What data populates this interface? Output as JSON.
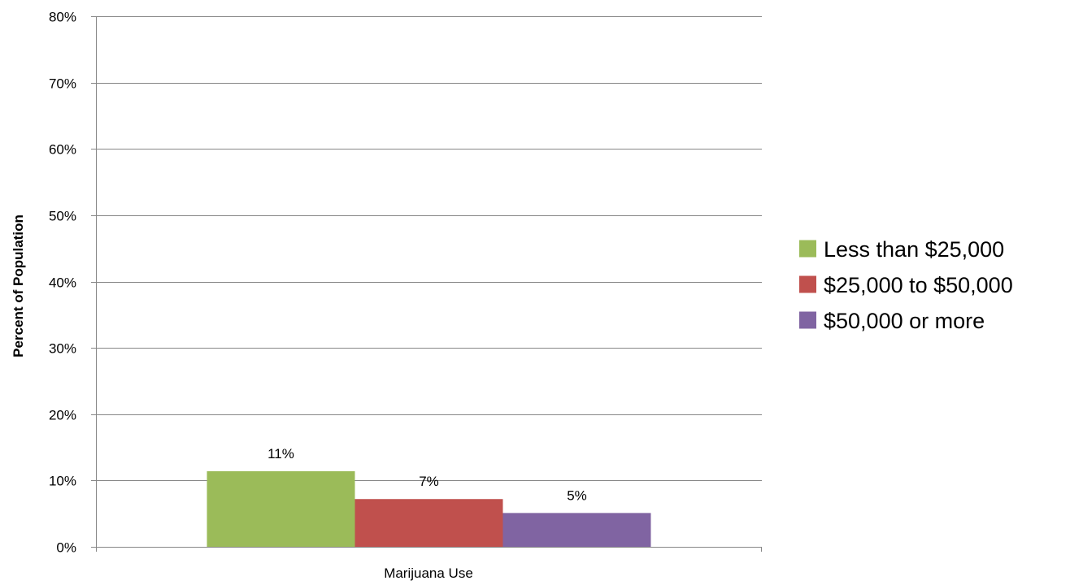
{
  "chart_data": {
    "type": "bar",
    "title": "",
    "xlabel": "",
    "ylabel": "Percent of Population",
    "categories": [
      "Marijuana Use"
    ],
    "ylim": [
      0,
      80
    ],
    "y_ticks": [
      "0%",
      "10%",
      "20%",
      "30%",
      "40%",
      "50%",
      "60%",
      "70%",
      "80%"
    ],
    "y_tick_values": [
      0,
      10,
      20,
      30,
      40,
      50,
      60,
      70,
      80
    ],
    "grid": true,
    "legend_position": "right",
    "series": [
      {
        "name": "Less than $25,000",
        "values": [
          11.4
        ],
        "label": "11%",
        "color": "#9BBB59"
      },
      {
        "name": "$25,000 to $50,000",
        "values": [
          7.2
        ],
        "label": "7%",
        "color": "#C0504D"
      },
      {
        "name": "$50,000 or more",
        "values": [
          5.1
        ],
        "label": "5%",
        "color": "#8064A2"
      }
    ]
  }
}
